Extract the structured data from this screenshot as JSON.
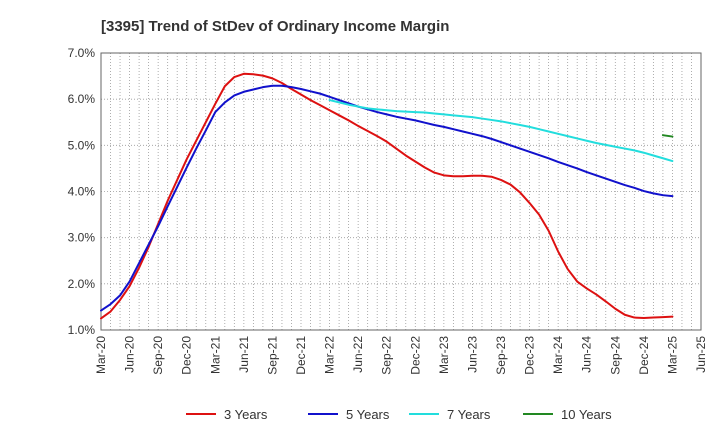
{
  "chart_data": {
    "type": "line",
    "title": "[3395]  Trend of StDev of Ordinary Income Margin",
    "xlabel": "",
    "ylabel": "",
    "x_ticks": [
      "Mar-20",
      "Jun-20",
      "Sep-20",
      "Dec-20",
      "Mar-21",
      "Jun-21",
      "Sep-21",
      "Dec-21",
      "Mar-22",
      "Jun-22",
      "Sep-22",
      "Dec-22",
      "Mar-23",
      "Jun-23",
      "Sep-23",
      "Dec-23",
      "Mar-24",
      "Jun-24",
      "Sep-24",
      "Dec-24",
      "Mar-25",
      "Jun-25"
    ],
    "y_ticks": [
      "1.0%",
      "2.0%",
      "3.0%",
      "4.0%",
      "5.0%",
      "6.0%",
      "7.0%"
    ],
    "ylim": [
      1.0,
      7.0
    ],
    "grid": true,
    "legend_position": "bottom",
    "series": [
      {
        "name": "3 Years",
        "color": "#dd1111",
        "points": [
          [
            "Mar-20",
            1.25
          ],
          [
            "Apr-20",
            1.4
          ],
          [
            "May-20",
            1.65
          ],
          [
            "Jun-20",
            1.95
          ],
          [
            "Jul-20",
            2.35
          ],
          [
            "Aug-20",
            2.8
          ],
          [
            "Sep-20",
            3.3
          ],
          [
            "Oct-20",
            3.8
          ],
          [
            "Nov-20",
            4.25
          ],
          [
            "Dec-20",
            4.7
          ],
          [
            "Jan-21",
            5.1
          ],
          [
            "Feb-21",
            5.5
          ],
          [
            "Mar-21",
            5.9
          ],
          [
            "Apr-21",
            6.28
          ],
          [
            "May-21",
            6.48
          ],
          [
            "Jun-21",
            6.55
          ],
          [
            "Jul-21",
            6.54
          ],
          [
            "Aug-21",
            6.51
          ],
          [
            "Sep-21",
            6.45
          ],
          [
            "Oct-21",
            6.35
          ],
          [
            "Nov-21",
            6.22
          ],
          [
            "Dec-21",
            6.1
          ],
          [
            "Jan-22",
            5.98
          ],
          [
            "Feb-22",
            5.87
          ],
          [
            "Mar-22",
            5.76
          ],
          [
            "Apr-22",
            5.65
          ],
          [
            "May-22",
            5.54
          ],
          [
            "Jun-22",
            5.42
          ],
          [
            "Jul-22",
            5.31
          ],
          [
            "Aug-22",
            5.2
          ],
          [
            "Sep-22",
            5.08
          ],
          [
            "Oct-22",
            4.93
          ],
          [
            "Nov-22",
            4.78
          ],
          [
            "Dec-22",
            4.65
          ],
          [
            "Jan-23",
            4.52
          ],
          [
            "Feb-23",
            4.41
          ],
          [
            "Mar-23",
            4.35
          ],
          [
            "Apr-23",
            4.33
          ],
          [
            "May-23",
            4.33
          ],
          [
            "Jun-23",
            4.34
          ],
          [
            "Jul-23",
            4.34
          ],
          [
            "Aug-23",
            4.32
          ],
          [
            "Sep-23",
            4.25
          ],
          [
            "Oct-23",
            4.15
          ],
          [
            "Nov-23",
            3.98
          ],
          [
            "Dec-23",
            3.75
          ],
          [
            "Jan-24",
            3.5
          ],
          [
            "Feb-24",
            3.15
          ],
          [
            "Mar-24",
            2.7
          ],
          [
            "Apr-24",
            2.32
          ],
          [
            "May-24",
            2.05
          ],
          [
            "Jun-24",
            1.9
          ],
          [
            "Jul-24",
            1.77
          ],
          [
            "Aug-24",
            1.62
          ],
          [
            "Sep-24",
            1.46
          ],
          [
            "Oct-24",
            1.33
          ],
          [
            "Nov-24",
            1.27
          ],
          [
            "Dec-24",
            1.26
          ],
          [
            "Jan-25",
            1.27
          ],
          [
            "Feb-25",
            1.28
          ],
          [
            "Mar-25",
            1.29
          ]
        ]
      },
      {
        "name": "5 Years",
        "color": "#1111cc",
        "points": [
          [
            "Mar-20",
            1.42
          ],
          [
            "Apr-20",
            1.56
          ],
          [
            "May-20",
            1.75
          ],
          [
            "Jun-20",
            2.05
          ],
          [
            "Jul-20",
            2.45
          ],
          [
            "Aug-20",
            2.85
          ],
          [
            "Sep-20",
            3.25
          ],
          [
            "Oct-20",
            3.68
          ],
          [
            "Nov-20",
            4.1
          ],
          [
            "Dec-20",
            4.52
          ],
          [
            "Jan-21",
            4.93
          ],
          [
            "Feb-21",
            5.32
          ],
          [
            "Mar-21",
            5.72
          ],
          [
            "Apr-21",
            5.93
          ],
          [
            "May-21",
            6.08
          ],
          [
            "Jun-21",
            6.16
          ],
          [
            "Jul-21",
            6.21
          ],
          [
            "Aug-21",
            6.26
          ],
          [
            "Sep-21",
            6.29
          ],
          [
            "Oct-21",
            6.29
          ],
          [
            "Nov-21",
            6.26
          ],
          [
            "Dec-21",
            6.22
          ],
          [
            "Jan-22",
            6.17
          ],
          [
            "Feb-22",
            6.12
          ],
          [
            "Mar-22",
            6.05
          ],
          [
            "Apr-22",
            5.98
          ],
          [
            "May-22",
            5.91
          ],
          [
            "Jun-22",
            5.84
          ],
          [
            "Jul-22",
            5.78
          ],
          [
            "Aug-22",
            5.72
          ],
          [
            "Sep-22",
            5.67
          ],
          [
            "Oct-22",
            5.62
          ],
          [
            "Nov-22",
            5.58
          ],
          [
            "Dec-22",
            5.54
          ],
          [
            "Jan-23",
            5.49
          ],
          [
            "Feb-23",
            5.44
          ],
          [
            "Mar-23",
            5.4
          ],
          [
            "Apr-23",
            5.35
          ],
          [
            "May-23",
            5.3
          ],
          [
            "Jun-23",
            5.25
          ],
          [
            "Jul-23",
            5.2
          ],
          [
            "Aug-23",
            5.14
          ],
          [
            "Sep-23",
            5.07
          ],
          [
            "Oct-23",
            5.0
          ],
          [
            "Nov-23",
            4.93
          ],
          [
            "Dec-23",
            4.86
          ],
          [
            "Jan-24",
            4.79
          ],
          [
            "Feb-24",
            4.72
          ],
          [
            "Mar-24",
            4.64
          ],
          [
            "Apr-24",
            4.57
          ],
          [
            "May-24",
            4.5
          ],
          [
            "Jun-24",
            4.42
          ],
          [
            "Jul-24",
            4.35
          ],
          [
            "Aug-24",
            4.28
          ],
          [
            "Sep-24",
            4.21
          ],
          [
            "Oct-24",
            4.14
          ],
          [
            "Nov-24",
            4.08
          ],
          [
            "Dec-24",
            4.01
          ],
          [
            "Jan-25",
            3.96
          ],
          [
            "Feb-25",
            3.92
          ],
          [
            "Mar-25",
            3.9
          ]
        ]
      },
      {
        "name": "7 Years",
        "color": "#22dddd",
        "points": [
          [
            "Mar-22",
            5.98
          ],
          [
            "Apr-22",
            5.93
          ],
          [
            "May-22",
            5.88
          ],
          [
            "Jun-22",
            5.84
          ],
          [
            "Jul-22",
            5.8
          ],
          [
            "Aug-22",
            5.78
          ],
          [
            "Sep-22",
            5.76
          ],
          [
            "Oct-22",
            5.74
          ],
          [
            "Nov-22",
            5.73
          ],
          [
            "Dec-22",
            5.72
          ],
          [
            "Jan-23",
            5.71
          ],
          [
            "Feb-23",
            5.69
          ],
          [
            "Mar-23",
            5.67
          ],
          [
            "Apr-23",
            5.65
          ],
          [
            "May-23",
            5.63
          ],
          [
            "Jun-23",
            5.61
          ],
          [
            "Jul-23",
            5.58
          ],
          [
            "Aug-23",
            5.55
          ],
          [
            "Sep-23",
            5.52
          ],
          [
            "Oct-23",
            5.48
          ],
          [
            "Nov-23",
            5.44
          ],
          [
            "Dec-23",
            5.4
          ],
          [
            "Jan-24",
            5.35
          ],
          [
            "Feb-24",
            5.3
          ],
          [
            "Mar-24",
            5.25
          ],
          [
            "Apr-24",
            5.2
          ],
          [
            "May-24",
            5.15
          ],
          [
            "Jun-24",
            5.1
          ],
          [
            "Jul-24",
            5.05
          ],
          [
            "Aug-24",
            5.01
          ],
          [
            "Sep-24",
            4.97
          ],
          [
            "Oct-24",
            4.93
          ],
          [
            "Nov-24",
            4.89
          ],
          [
            "Dec-24",
            4.84
          ],
          [
            "Jan-25",
            4.78
          ],
          [
            "Feb-25",
            4.72
          ],
          [
            "Mar-25",
            4.66
          ]
        ]
      },
      {
        "name": "10 Years",
        "color": "#228822",
        "points": [
          [
            "Feb-25",
            5.22
          ],
          [
            "Mar-25",
            5.19
          ]
        ]
      }
    ]
  }
}
